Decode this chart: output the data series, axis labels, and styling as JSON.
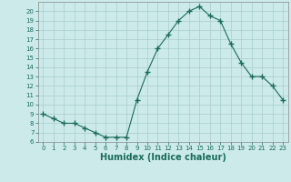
{
  "x": [
    0,
    1,
    2,
    3,
    4,
    5,
    6,
    7,
    8,
    9,
    10,
    11,
    12,
    13,
    14,
    15,
    16,
    17,
    18,
    19,
    20,
    21,
    22,
    23
  ],
  "y": [
    9.0,
    8.5,
    8.0,
    8.0,
    7.5,
    7.0,
    6.5,
    6.5,
    6.5,
    10.5,
    13.5,
    16.0,
    17.5,
    19.0,
    20.0,
    20.5,
    19.5,
    19.0,
    16.5,
    14.5,
    13.0,
    13.0,
    12.0,
    10.5
  ],
  "line_color": "#1a6b5a",
  "marker": "+",
  "marker_size": 4,
  "bg_color": "#cceaea",
  "grid_color": "#aacccc",
  "xlabel": "Humidex (Indice chaleur)",
  "xlim": [
    -0.5,
    23.5
  ],
  "ylim": [
    6,
    21
  ],
  "yticks": [
    6,
    7,
    8,
    9,
    10,
    11,
    12,
    13,
    14,
    15,
    16,
    17,
    18,
    19,
    20
  ],
  "xticks": [
    0,
    1,
    2,
    3,
    4,
    5,
    6,
    7,
    8,
    9,
    10,
    11,
    12,
    13,
    14,
    15,
    16,
    17,
    18,
    19,
    20,
    21,
    22,
    23
  ],
  "tick_color": "#1a6b5a",
  "label_fontsize": 5,
  "xlabel_fontsize": 7
}
